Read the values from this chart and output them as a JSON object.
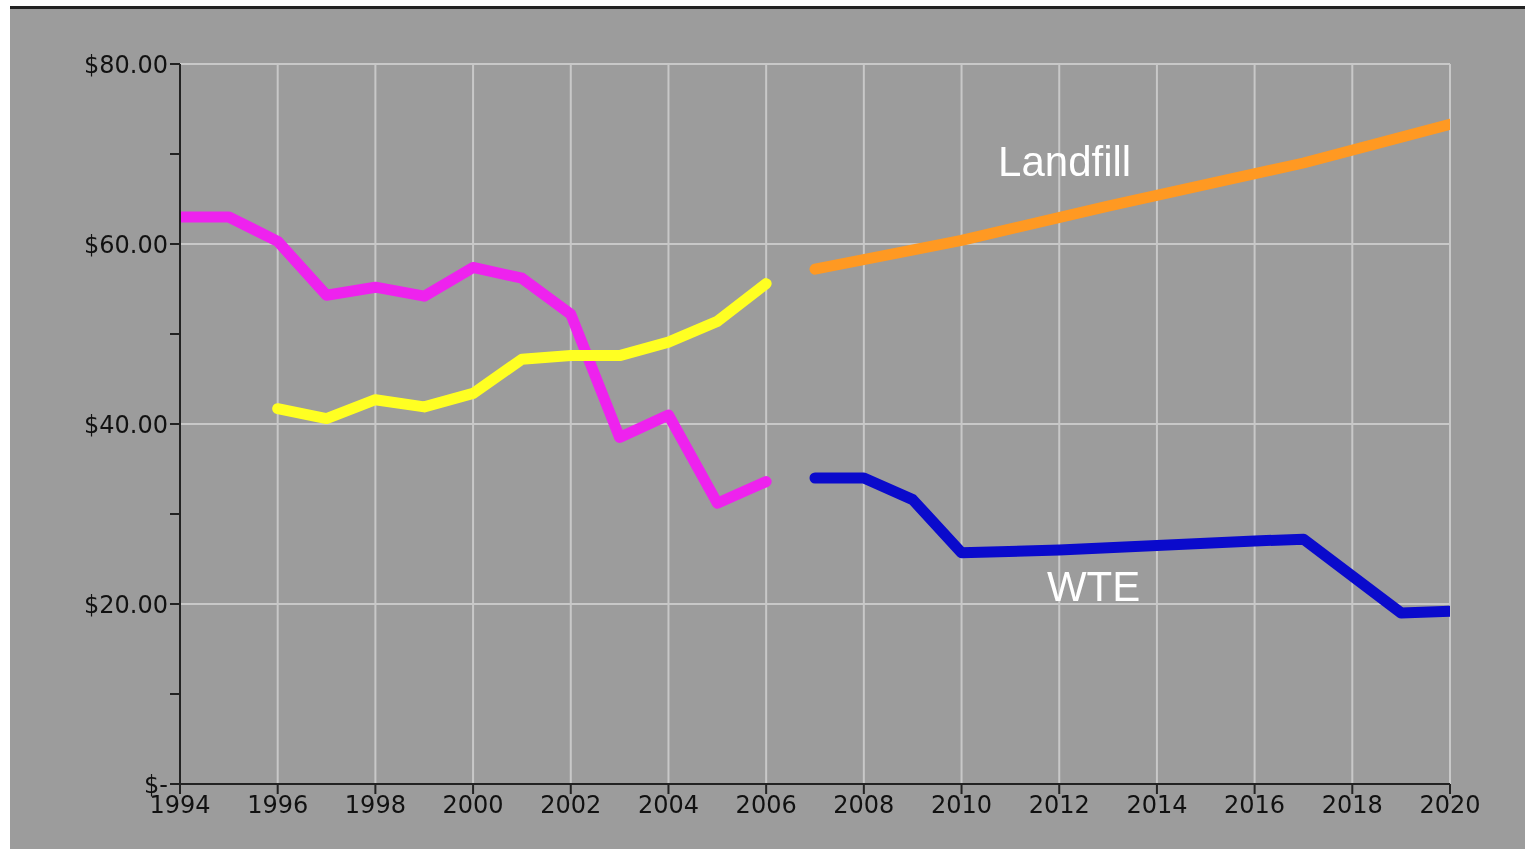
{
  "chart_data": {
    "type": "line",
    "series": [
      {
        "color": "#ee22ee",
        "x": [
          1994,
          1995,
          1996,
          1997,
          1998,
          1999,
          2000,
          2001,
          2002,
          2003,
          2004,
          2005,
          2006
        ],
        "values": [
          63,
          63,
          60.3,
          54.3,
          55.2,
          54.2,
          57.4,
          56.2,
          52.2,
          38.5,
          41,
          31.2,
          33.6
        ]
      },
      {
        "color": "#ffff22",
        "x": [
          1996,
          1997,
          1998,
          1999,
          2000,
          2001,
          2002,
          2003,
          2004,
          2005,
          2006
        ],
        "values": [
          41.7,
          40.6,
          42.7,
          41.9,
          43.4,
          47.2,
          47.6,
          47.6,
          49.1,
          51.4,
          55.6
        ]
      },
      {
        "name": "Landfill",
        "color": "#ff9922",
        "x": [
          2007,
          2010,
          2013,
          2017,
          2020
        ],
        "values": [
          57.2,
          60.4,
          64.2,
          69,
          73.3
        ]
      },
      {
        "name": "WTE",
        "color": "#0a0acc",
        "x": [
          2007,
          2008,
          2009,
          2010,
          2012,
          2014,
          2016,
          2017,
          2019,
          2020
        ],
        "values": [
          34,
          34,
          31.6,
          25.7,
          26,
          26.5,
          27,
          27.2,
          19,
          19.2
        ]
      }
    ],
    "xlim": [
      1994,
      2020
    ],
    "xticks": [
      1994,
      1996,
      1998,
      2000,
      2002,
      2004,
      2006,
      2008,
      2010,
      2012,
      2014,
      2016,
      2018,
      2020
    ],
    "ylim": [
      0,
      80
    ],
    "yticks": [
      {
        "value": 0,
        "label": "$-"
      },
      {
        "value": 10,
        "label": null
      },
      {
        "value": 20,
        "label": "$20.00"
      },
      {
        "value": 30,
        "label": null
      },
      {
        "value": 40,
        "label": "$40.00"
      },
      {
        "value": 50,
        "label": null
      },
      {
        "value": 60,
        "label": "$60.00"
      },
      {
        "value": 70,
        "label": null
      },
      {
        "value": 80,
        "label": "$80.00"
      }
    ],
    "grid": true,
    "marker": "none",
    "line_style": "solid",
    "legend": false
  }
}
